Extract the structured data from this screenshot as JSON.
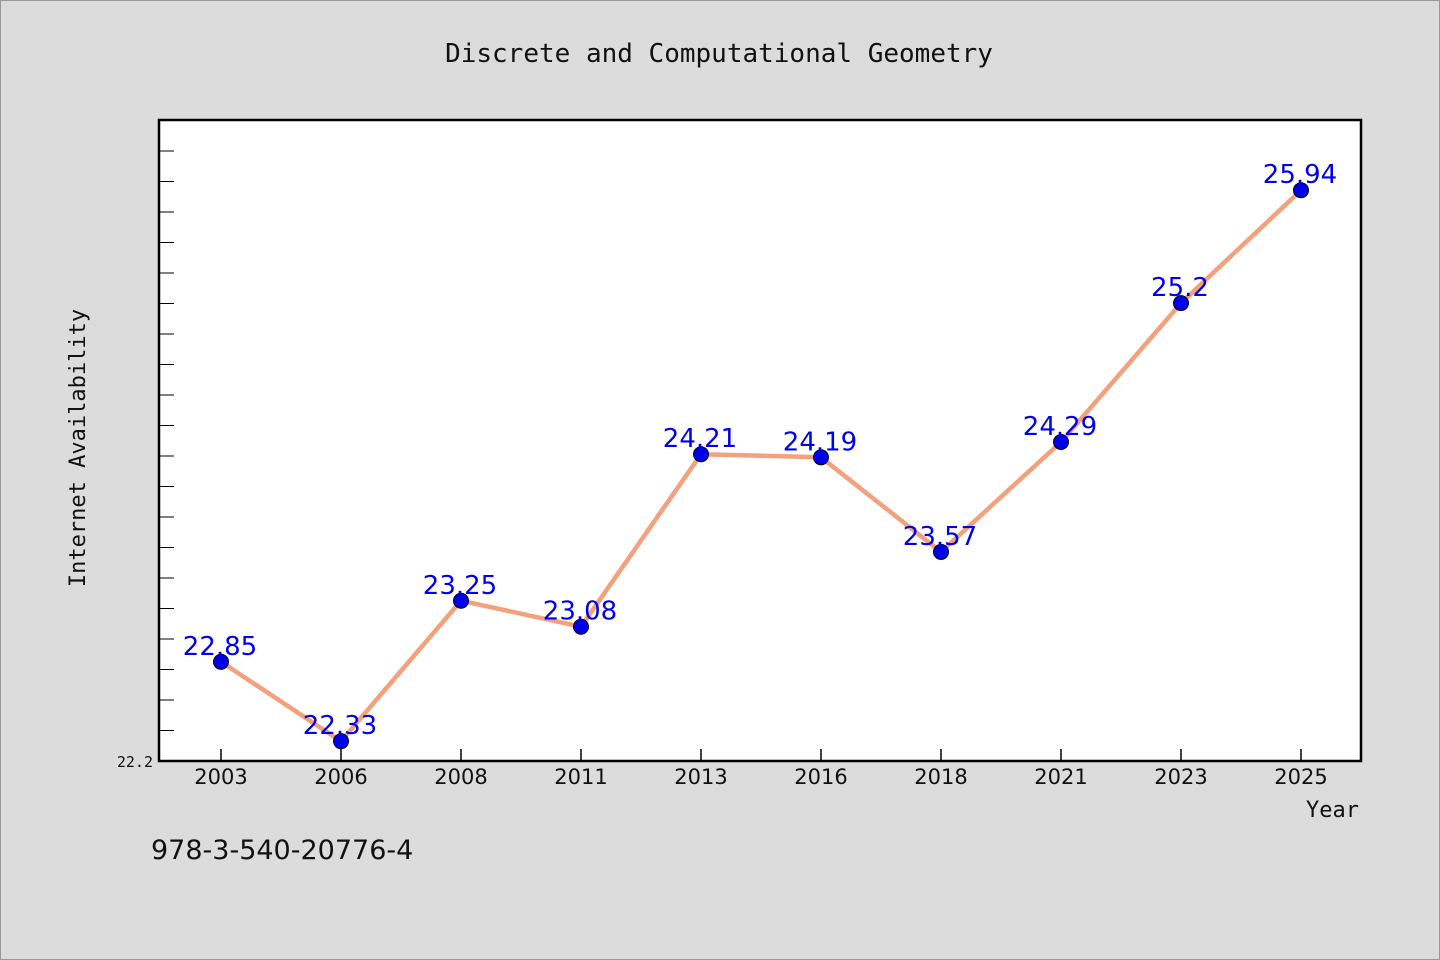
{
  "chart_data": {
    "type": "line",
    "title": "Discrete and Computational Geometry",
    "xlabel": "Year",
    "ylabel": "Internet Availability",
    "categories": [
      "2003",
      "2006",
      "2008",
      "2011",
      "2013",
      "2016",
      "2018",
      "2021",
      "2023",
      "2025"
    ],
    "series": [
      {
        "values": [
          22.85,
          22.33,
          23.25,
          23.08,
          24.21,
          24.19,
          23.57,
          24.29,
          25.2,
          25.94
        ]
      }
    ],
    "data_labels": [
      "22.85",
      "22.33",
      "23.25",
      "23.08",
      "24.21",
      "24.19",
      "23.57",
      "24.29",
      "25.2",
      "25.94"
    ],
    "ylim": [
      22.2,
      26.4
    ],
    "y_min_label": "22.2",
    "grid": false,
    "colors": {
      "line": "#f4a07c",
      "marker": "#0000ee",
      "label": "#0000ee",
      "background": "#dcdcdc",
      "plot_area": "#ffffff"
    }
  },
  "footer_note": "978-3-540-20776-4"
}
